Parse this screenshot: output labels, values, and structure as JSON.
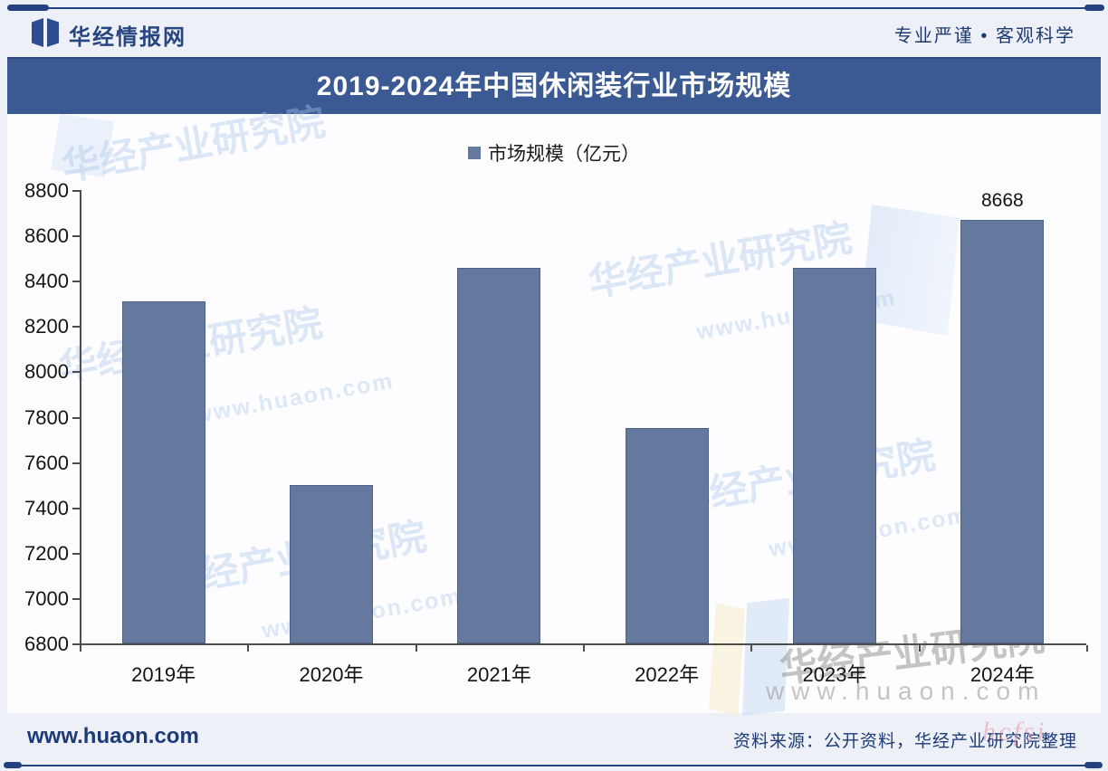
{
  "header": {
    "brand": "华经情报网",
    "slogan": "专业严谨 • 客观科学"
  },
  "title": "2019-2024年中国休闲装行业市场规模",
  "legend_label": "市场规模（亿元）",
  "footer": {
    "site": "www.huaon.com",
    "source": "资料来源：公开资料，华经产业研究院整理"
  },
  "watermark": {
    "org": "华经产业研究院",
    "url": "www.huaon.com",
    "stamp": "hcfsi"
  },
  "colors": {
    "accent_navy": "#24427f",
    "title_band": "#3b5a94",
    "bar": "#65799f",
    "axis": "#4d4d4d"
  },
  "chart_data": {
    "type": "bar",
    "title": "2019-2024年中国休闲装行业市场规模",
    "categories": [
      "2019年",
      "2020年",
      "2021年",
      "2022年",
      "2023年",
      "2024年"
    ],
    "values": [
      8310,
      7500,
      8455,
      7750,
      8455,
      8668
    ],
    "data_labels": [
      "",
      "",
      "",
      "",
      "",
      "8668"
    ],
    "series_name": "市场规模（亿元）",
    "xlabel": "",
    "ylabel": "",
    "unit": "亿元",
    "ylim": [
      6800,
      8800
    ],
    "yticks": [
      6800,
      7000,
      7200,
      7400,
      7600,
      7800,
      8000,
      8200,
      8400,
      8600,
      8800
    ],
    "grid": false,
    "legend_position": "top"
  }
}
